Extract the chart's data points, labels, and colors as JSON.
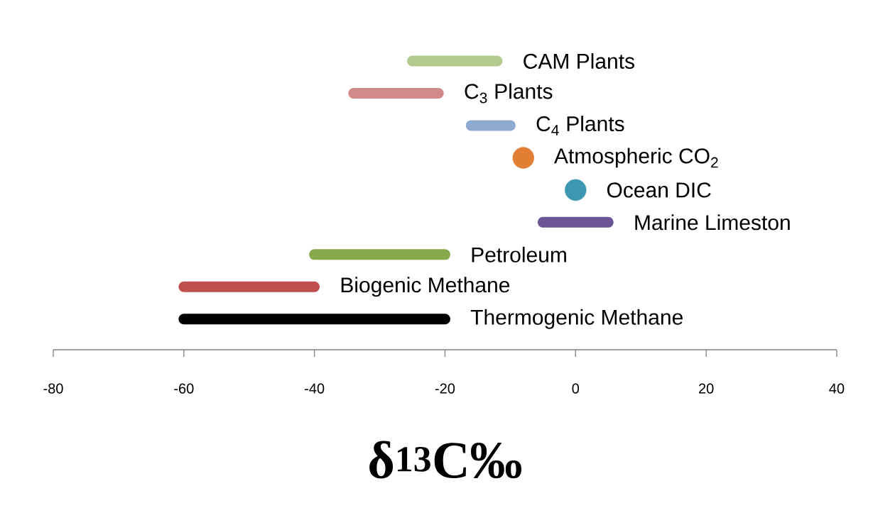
{
  "chart_data": {
    "type": "bar",
    "orientation": "horizontal",
    "xlabel": "δ$^{13}$C‰",
    "categories": [
      "CAM Plants",
      "C$_{3}$ Plants",
      "C$_{4}$ Plants",
      "Atmospheric CO$_{2}$",
      "Ocean DIC",
      "Marine Limeston",
      "Petroleum",
      "Biogenic Methane",
      "Thermogenic Methane"
    ],
    "series": [
      {
        "base": [
          -25,
          -34,
          -16,
          null,
          null,
          -5,
          -40,
          -60,
          -60
        ],
        "values": [
          13,
          13,
          6,
          null,
          null,
          10,
          20,
          20,
          40
        ],
        "colors": [
          "#b3ca8e",
          "#d08a89",
          "#8eaad0",
          null,
          null,
          "#6d5494",
          "#87a84b",
          "#c0504d",
          "#000000"
        ]
      },
      {
        "type": "scatter",
        "marker": "circle",
        "values": [
          null,
          null,
          null,
          -8,
          0,
          null,
          null,
          null,
          null
        ],
        "colors": [
          null,
          null,
          null,
          "#e07f34",
          "#3d97b0",
          null,
          null,
          null,
          null
        ]
      }
    ],
    "xlim": [
      -80,
      40
    ],
    "xticks": [
      -80,
      -60,
      -40,
      -20,
      0,
      20,
      40
    ]
  }
}
